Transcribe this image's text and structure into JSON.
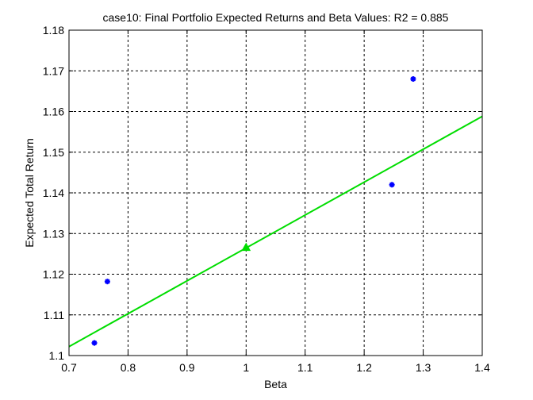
{
  "chart_data": {
    "type": "scatter",
    "title": "case10: Final Portfolio Expected Returns and Beta Values: R2 = 0.885",
    "xlabel": "Beta",
    "ylabel": "Expected Total Return",
    "xlim": [
      0.7,
      1.4
    ],
    "ylim": [
      1.1,
      1.18
    ],
    "xticks": [
      "0.7",
      "0.8",
      "0.9",
      "1",
      "1.1",
      "1.2",
      "1.3",
      "1.4"
    ],
    "yticks": [
      "1.1",
      "1.11",
      "1.12",
      "1.13",
      "1.14",
      "1.15",
      "1.16",
      "1.17",
      "1.18"
    ],
    "grid": true,
    "series": [
      {
        "type": "scatter",
        "marker": "asterisk",
        "color": "#0000ff",
        "points": [
          {
            "x": 0.743,
            "y": 1.1031
          },
          {
            "x": 0.765,
            "y": 1.1182
          },
          {
            "x": 1.247,
            "y": 1.142
          },
          {
            "x": 1.283,
            "y": 1.168
          }
        ]
      },
      {
        "type": "line",
        "color": "#00dd00",
        "points": [
          {
            "x": 0.7,
            "y": 1.1022
          },
          {
            "x": 1.4,
            "y": 1.1588
          }
        ]
      },
      {
        "type": "scatter",
        "marker": "triangle",
        "color": "#00dd00",
        "points": [
          {
            "x": 1.0,
            "y": 1.1266
          }
        ]
      }
    ]
  }
}
